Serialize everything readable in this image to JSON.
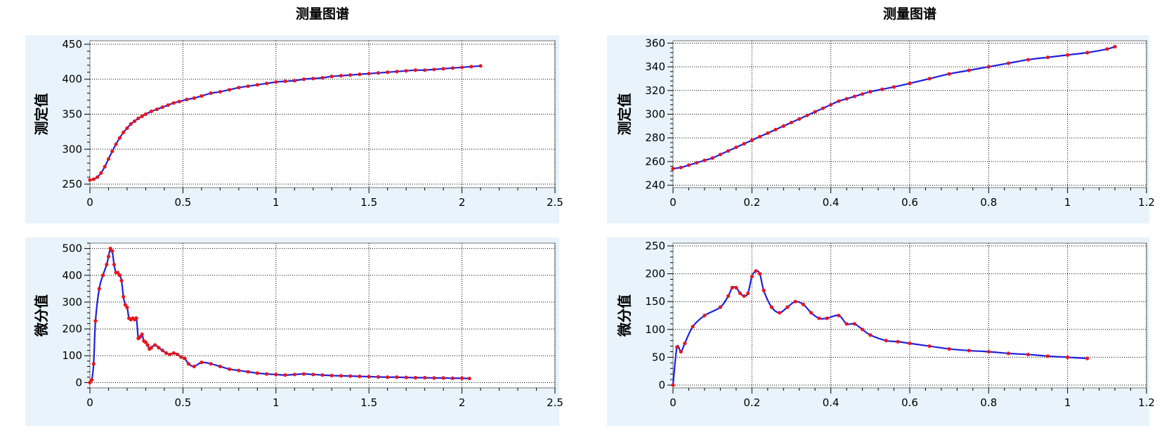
{
  "colors": {
    "line": "#1f1fe0",
    "marker": "#e8161b",
    "panel_bg": "#e8f3fb",
    "grid": "#000000"
  },
  "chart_data": [
    {
      "id": "tl",
      "type": "line",
      "title": "测量图谱",
      "xlabel": "",
      "ylabel": "测定值",
      "xlim": [
        0,
        2.5
      ],
      "ylim": [
        245,
        455
      ],
      "xticks": [
        "0",
        "0.5",
        "1",
        "1.5",
        "2",
        "2.5"
      ],
      "yticks": [
        "250",
        "300",
        "350",
        "400",
        "450"
      ],
      "grid": true,
      "series": [
        {
          "x": [
            0.0,
            0.02,
            0.04,
            0.06,
            0.08,
            0.1,
            0.12,
            0.14,
            0.16,
            0.18,
            0.2,
            0.22,
            0.24,
            0.26,
            0.28,
            0.3,
            0.33,
            0.36,
            0.39,
            0.42,
            0.45,
            0.48,
            0.52,
            0.56,
            0.6,
            0.65,
            0.7,
            0.75,
            0.8,
            0.85,
            0.9,
            0.95,
            1.0,
            1.05,
            1.1,
            1.15,
            1.2,
            1.25,
            1.3,
            1.35,
            1.4,
            1.45,
            1.5,
            1.55,
            1.6,
            1.65,
            1.7,
            1.75,
            1.8,
            1.85,
            1.9,
            1.95,
            2.0,
            2.05,
            2.1
          ],
          "y": [
            256,
            257,
            260,
            266,
            275,
            286,
            297,
            307,
            316,
            324,
            330,
            336,
            340,
            344,
            347,
            350,
            354,
            357,
            360,
            363,
            366,
            368,
            371,
            373,
            376,
            380,
            382,
            385,
            388,
            390,
            392,
            394,
            396,
            397,
            398,
            400,
            401,
            402,
            404,
            405,
            406,
            407,
            408,
            409,
            410,
            411,
            412,
            413,
            413,
            414,
            415,
            416,
            417,
            418,
            419
          ]
        }
      ]
    },
    {
      "id": "bl",
      "type": "line",
      "title": "",
      "xlabel": "",
      "ylabel": "微分值",
      "xlim": [
        0,
        2.5
      ],
      "ylim": [
        -20,
        520
      ],
      "xticks": [
        "0",
        "0.5",
        "1",
        "1.5",
        "2",
        "2.5"
      ],
      "yticks": [
        "0",
        "100",
        "200",
        "300",
        "400",
        "500"
      ],
      "grid": true,
      "series": [
        {
          "x": [
            0.0,
            0.01,
            0.02,
            0.03,
            0.05,
            0.07,
            0.09,
            0.1,
            0.11,
            0.12,
            0.13,
            0.14,
            0.15,
            0.16,
            0.17,
            0.18,
            0.19,
            0.2,
            0.21,
            0.22,
            0.23,
            0.24,
            0.25,
            0.26,
            0.27,
            0.28,
            0.29,
            0.3,
            0.31,
            0.32,
            0.33,
            0.35,
            0.37,
            0.39,
            0.41,
            0.43,
            0.45,
            0.47,
            0.49,
            0.51,
            0.53,
            0.56,
            0.6,
            0.65,
            0.7,
            0.75,
            0.8,
            0.85,
            0.9,
            0.95,
            1.0,
            1.05,
            1.1,
            1.15,
            1.2,
            1.25,
            1.3,
            1.35,
            1.4,
            1.45,
            1.5,
            1.55,
            1.6,
            1.65,
            1.7,
            1.75,
            1.8,
            1.85,
            1.9,
            1.95,
            2.0,
            2.04
          ],
          "y": [
            0,
            10,
            70,
            230,
            350,
            400,
            440,
            470,
            500,
            490,
            440,
            410,
            410,
            400,
            380,
            320,
            290,
            280,
            240,
            235,
            240,
            235,
            240,
            165,
            170,
            180,
            155,
            150,
            140,
            125,
            130,
            140,
            130,
            120,
            110,
            105,
            110,
            105,
            95,
            90,
            70,
            60,
            75,
            70,
            60,
            50,
            45,
            40,
            35,
            32,
            30,
            28,
            30,
            32,
            30,
            28,
            26,
            25,
            24,
            23,
            22,
            21,
            20,
            20,
            19,
            18,
            18,
            17,
            17,
            16,
            16,
            15
          ]
        }
      ]
    },
    {
      "id": "tr",
      "type": "line",
      "title": "测量图谱",
      "xlabel": "",
      "ylabel": "测定值",
      "xlim": [
        0,
        1.2
      ],
      "ylim": [
        238,
        362
      ],
      "xticks": [
        "0",
        "0.2",
        "0.4",
        "0.6",
        "0.8",
        "1",
        "1.2"
      ],
      "yticks": [
        "240",
        "260",
        "280",
        "300",
        "320",
        "340",
        "360"
      ],
      "grid": true,
      "series": [
        {
          "x": [
            0.0,
            0.02,
            0.04,
            0.06,
            0.08,
            0.1,
            0.12,
            0.14,
            0.16,
            0.18,
            0.2,
            0.22,
            0.24,
            0.26,
            0.28,
            0.3,
            0.32,
            0.34,
            0.36,
            0.38,
            0.4,
            0.42,
            0.44,
            0.46,
            0.48,
            0.5,
            0.53,
            0.56,
            0.6,
            0.65,
            0.7,
            0.75,
            0.8,
            0.85,
            0.9,
            0.95,
            1.0,
            1.05,
            1.1,
            1.12
          ],
          "y": [
            254,
            255,
            257,
            259,
            261,
            263,
            266,
            269,
            272,
            275,
            278,
            281,
            284,
            287,
            290,
            293,
            296,
            299,
            302,
            305,
            308,
            311,
            313,
            315,
            317,
            319,
            321,
            323,
            326,
            330,
            334,
            337,
            340,
            343,
            346,
            348,
            350,
            352,
            355,
            357
          ]
        }
      ]
    },
    {
      "id": "br",
      "type": "line",
      "title": "",
      "xlabel": "",
      "ylabel": "微分值",
      "xlim": [
        0,
        1.2
      ],
      "ylim": [
        -5,
        255
      ],
      "xticks": [
        "0",
        "0.2",
        "0.4",
        "0.6",
        "0.8",
        "1",
        "1.2"
      ],
      "yticks": [
        "0",
        "50",
        "100",
        "150",
        "200",
        "250"
      ],
      "grid": true,
      "series": [
        {
          "x": [
            0.0,
            0.01,
            0.02,
            0.03,
            0.05,
            0.08,
            0.12,
            0.14,
            0.15,
            0.16,
            0.17,
            0.18,
            0.19,
            0.2,
            0.21,
            0.22,
            0.23,
            0.25,
            0.27,
            0.29,
            0.31,
            0.33,
            0.35,
            0.37,
            0.39,
            0.42,
            0.44,
            0.46,
            0.48,
            0.5,
            0.54,
            0.57,
            0.6,
            0.65,
            0.7,
            0.75,
            0.8,
            0.85,
            0.9,
            0.95,
            1.0,
            1.05
          ],
          "y": [
            0,
            68,
            60,
            75,
            105,
            125,
            140,
            160,
            175,
            175,
            165,
            160,
            165,
            195,
            205,
            200,
            170,
            140,
            130,
            140,
            150,
            145,
            130,
            120,
            120,
            125,
            110,
            110,
            100,
            90,
            80,
            78,
            75,
            70,
            65,
            62,
            60,
            57,
            55,
            52,
            50,
            48
          ]
        }
      ]
    }
  ]
}
